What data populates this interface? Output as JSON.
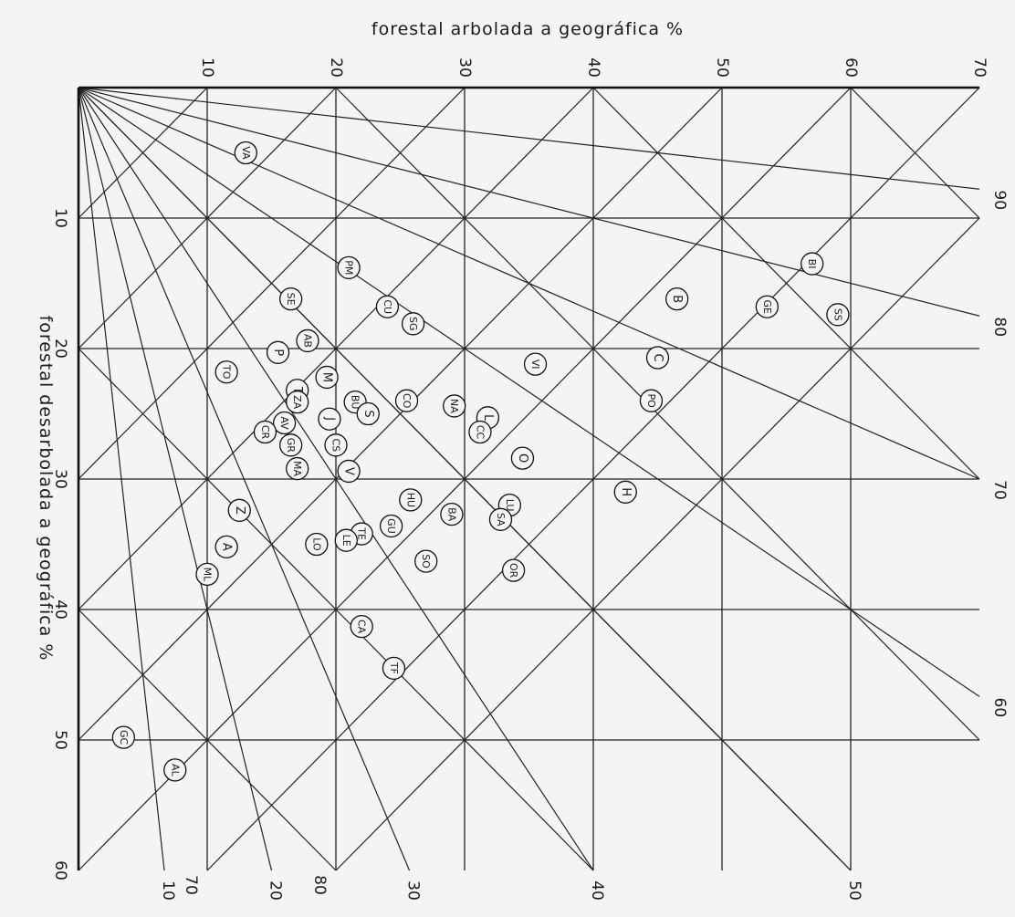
{
  "chart_data": {
    "type": "scatter",
    "top_axis_label": "forestal arbolada a geográfica %",
    "left_axis_label": "forestal desarbolada a geográfica %",
    "x_axis": {
      "label": "forestal arbolada a geográfica %",
      "range": [
        0,
        70
      ],
      "ticks": [
        10,
        20,
        30,
        40,
        50,
        60,
        70
      ]
    },
    "y_axis": {
      "label": "forestal desarbolada a geográfica %",
      "range": [
        0,
        60
      ],
      "ticks": [
        10,
        20,
        30,
        40,
        50,
        60
      ]
    },
    "total_lines": {
      "values": [
        10,
        20,
        30,
        40,
        50,
        60,
        70,
        80
      ],
      "labels": [
        "10",
        "20",
        "30",
        "40",
        "50",
        "60",
        "70",
        "80"
      ]
    },
    "ratio_rays": {
      "right_edge": [
        {
          "label": "90",
          "value": 90
        },
        {
          "label": "80",
          "value": 80
        },
        {
          "label": "70",
          "value": 70
        },
        {
          "label": "60",
          "value": 60
        },
        {
          "label": "50",
          "value": 50
        }
      ],
      "bottom_edge": [
        {
          "label": "40",
          "value": 40
        },
        {
          "label": "30",
          "value": 30
        },
        {
          "label": "20",
          "value": 20
        },
        {
          "label": "10",
          "value": 10
        }
      ]
    },
    "points": [
      {
        "label": "VA",
        "x": 13.0,
        "y": 5.0
      },
      {
        "label": "BI",
        "x": 57.0,
        "y": 13.5
      },
      {
        "label": "PM",
        "x": 21.0,
        "y": 13.8
      },
      {
        "label": "B",
        "x": 46.5,
        "y": 16.2
      },
      {
        "label": "GE",
        "x": 53.5,
        "y": 16.8
      },
      {
        "label": "SS",
        "x": 59.0,
        "y": 17.4
      },
      {
        "label": "SE",
        "x": 16.5,
        "y": 16.2
      },
      {
        "label": "CU",
        "x": 24.0,
        "y": 16.8
      },
      {
        "label": "SG",
        "x": 26.0,
        "y": 18.1
      },
      {
        "label": "AB",
        "x": 17.8,
        "y": 19.4
      },
      {
        "label": "P",
        "x": 15.5,
        "y": 20.3
      },
      {
        "label": "C",
        "x": 45.0,
        "y": 20.7
      },
      {
        "label": "VI",
        "x": 35.5,
        "y": 21.2
      },
      {
        "label": "TO",
        "x": 11.5,
        "y": 21.8
      },
      {
        "label": "M",
        "x": 19.3,
        "y": 22.2
      },
      {
        "label": "T",
        "x": 17.0,
        "y": 23.2
      },
      {
        "label": "ZA",
        "x": 17.0,
        "y": 24.1
      },
      {
        "label": "BU",
        "x": 21.5,
        "y": 24.1
      },
      {
        "label": "S",
        "x": 22.5,
        "y": 25.0
      },
      {
        "label": "J",
        "x": 19.5,
        "y": 25.4
      },
      {
        "label": "CO",
        "x": 25.5,
        "y": 24.0
      },
      {
        "label": "NA",
        "x": 29.2,
        "y": 24.4
      },
      {
        "label": "PO",
        "x": 44.5,
        "y": 24.0
      },
      {
        "label": "L",
        "x": 31.8,
        "y": 25.3
      },
      {
        "label": "CC",
        "x": 31.2,
        "y": 26.4
      },
      {
        "label": "AV",
        "x": 16.0,
        "y": 25.7
      },
      {
        "label": "CR",
        "x": 14.5,
        "y": 26.4
      },
      {
        "label": "GR",
        "x": 16.5,
        "y": 27.4
      },
      {
        "label": "CS",
        "x": 20.0,
        "y": 27.4
      },
      {
        "label": "O",
        "x": 34.5,
        "y": 28.4
      },
      {
        "label": "MA",
        "x": 17.0,
        "y": 29.2
      },
      {
        "label": "V",
        "x": 21.0,
        "y": 29.4
      },
      {
        "label": "H",
        "x": 42.5,
        "y": 31.0
      },
      {
        "label": "HU",
        "x": 25.8,
        "y": 31.6
      },
      {
        "label": "Z",
        "x": 12.5,
        "y": 32.4
      },
      {
        "label": "LU",
        "x": 33.5,
        "y": 32.0
      },
      {
        "label": "BA",
        "x": 29.0,
        "y": 32.7
      },
      {
        "label": "SA",
        "x": 32.8,
        "y": 33.1
      },
      {
        "label": "GU",
        "x": 24.3,
        "y": 33.6
      },
      {
        "label": "TE",
        "x": 22.0,
        "y": 34.2
      },
      {
        "label": "LE",
        "x": 20.8,
        "y": 34.7
      },
      {
        "label": "LO",
        "x": 18.5,
        "y": 35.0
      },
      {
        "label": "A",
        "x": 11.5,
        "y": 35.2
      },
      {
        "label": "SO",
        "x": 27.0,
        "y": 36.3
      },
      {
        "label": "OR",
        "x": 33.8,
        "y": 37.0
      },
      {
        "label": "ML",
        "x": 10.0,
        "y": 37.3
      },
      {
        "label": "CA",
        "x": 22.0,
        "y": 41.3
      },
      {
        "label": "TF",
        "x": 24.5,
        "y": 44.5
      },
      {
        "label": "GC",
        "x": 3.5,
        "y": 49.8
      },
      {
        "label": "AL",
        "x": 7.5,
        "y": 52.3
      }
    ]
  }
}
